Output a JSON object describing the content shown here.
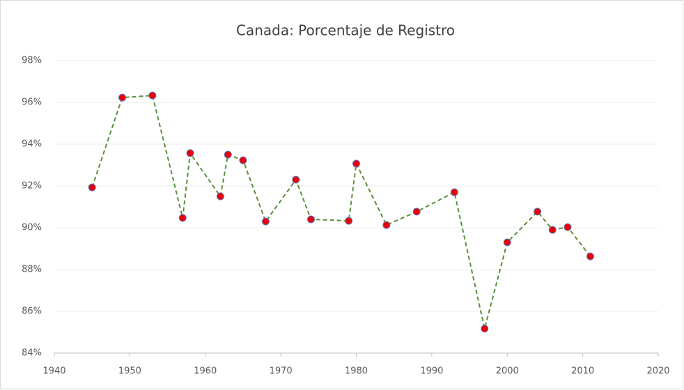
{
  "chart_data": {
    "type": "scatter",
    "title": "Canada: Porcentaje de Registro",
    "x": [
      1945,
      1949,
      1953,
      1957,
      1958,
      1962,
      1963,
      1965,
      1968,
      1972,
      1974,
      1979,
      1980,
      1984,
      1988,
      1993,
      1997,
      2000,
      2004,
      2006,
      2008,
      2011
    ],
    "values": [
      91.93,
      96.23,
      96.33,
      90.47,
      93.57,
      91.5,
      93.5,
      93.23,
      90.3,
      92.3,
      90.4,
      90.33,
      93.07,
      90.13,
      90.77,
      91.7,
      85.17,
      89.3,
      90.77,
      89.9,
      90.03,
      88.63
    ],
    "line_color": "#5a8f3c",
    "line_dashed": true,
    "marker_color": "#e8000b",
    "marker_edge_color": "#5b7bb8",
    "xlim": [
      1940,
      2020
    ],
    "xticks": [
      1940,
      1950,
      1960,
      1970,
      1980,
      1990,
      2000,
      2010,
      2020
    ],
    "ylim": [
      84,
      98
    ],
    "yticks": [
      {
        "value": 84,
        "label": "84%"
      },
      {
        "value": 86,
        "label": "86%"
      },
      {
        "value": 88,
        "label": "88%"
      },
      {
        "value": 90,
        "label": "90%"
      },
      {
        "value": 92,
        "label": "92%"
      },
      {
        "value": 94,
        "label": "94%"
      },
      {
        "value": 96,
        "label": "96%"
      },
      {
        "value": 98,
        "label": "98%"
      }
    ],
    "grid": true
  }
}
